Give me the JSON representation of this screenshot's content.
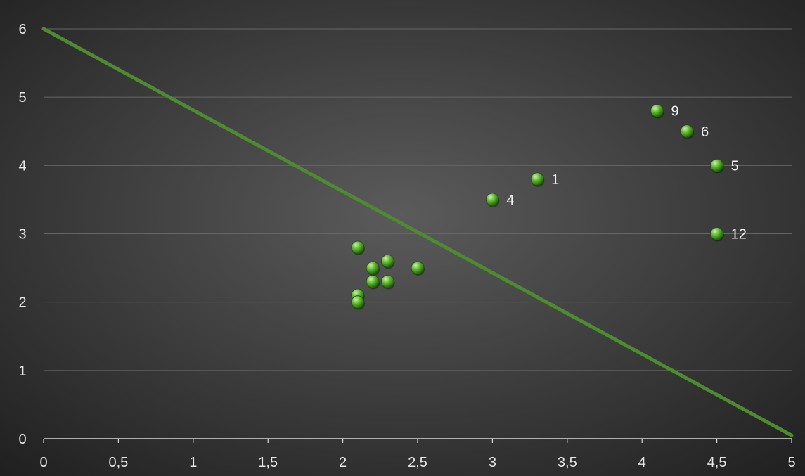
{
  "chart_data": {
    "type": "scatter",
    "title": "",
    "xlabel": "",
    "ylabel": "",
    "xlim": [
      0,
      5
    ],
    "ylim": [
      0,
      6
    ],
    "x_ticks": [
      0,
      0.5,
      1,
      1.5,
      2,
      2.5,
      3,
      3.5,
      4,
      4.5,
      5
    ],
    "x_tick_labels": [
      "0",
      "0,5",
      "1",
      "1,5",
      "2",
      "2,5",
      "3",
      "3,5",
      "4",
      "4,5",
      "5"
    ],
    "y_ticks": [
      0,
      1,
      2,
      3,
      4,
      5,
      6
    ],
    "y_tick_labels": [
      "0",
      "1",
      "2",
      "3",
      "4",
      "5",
      "6"
    ],
    "grid": true,
    "legend": "none",
    "colors": {
      "background_center": "#5b5b5b",
      "background_edge": "#1f1f1f",
      "grid": "#666666",
      "axis": "#d9d9d9",
      "line": "#4d8a30",
      "point": "#5cb82e",
      "point_highlight": "#c9f5a3",
      "point_shadow": "#1e4f0c"
    },
    "line": {
      "x": [
        0,
        5
      ],
      "y": [
        6,
        0.05
      ]
    },
    "points": [
      {
        "x": 2.1,
        "y": 2.8,
        "label": ""
      },
      {
        "x": 2.2,
        "y": 2.5,
        "label": ""
      },
      {
        "x": 2.3,
        "y": 2.6,
        "label": ""
      },
      {
        "x": 2.5,
        "y": 2.5,
        "label": ""
      },
      {
        "x": 2.2,
        "y": 2.3,
        "label": ""
      },
      {
        "x": 2.3,
        "y": 2.3,
        "label": ""
      },
      {
        "x": 2.1,
        "y": 2.1,
        "label": ""
      },
      {
        "x": 2.1,
        "y": 2.0,
        "label": ""
      },
      {
        "x": 3.0,
        "y": 3.5,
        "label": "4"
      },
      {
        "x": 3.3,
        "y": 3.8,
        "label": "1"
      },
      {
        "x": 4.1,
        "y": 4.8,
        "label": "9"
      },
      {
        "x": 4.3,
        "y": 4.5,
        "label": "6"
      },
      {
        "x": 4.5,
        "y": 4.0,
        "label": "5"
      },
      {
        "x": 4.5,
        "y": 3.0,
        "label": "12"
      }
    ]
  }
}
